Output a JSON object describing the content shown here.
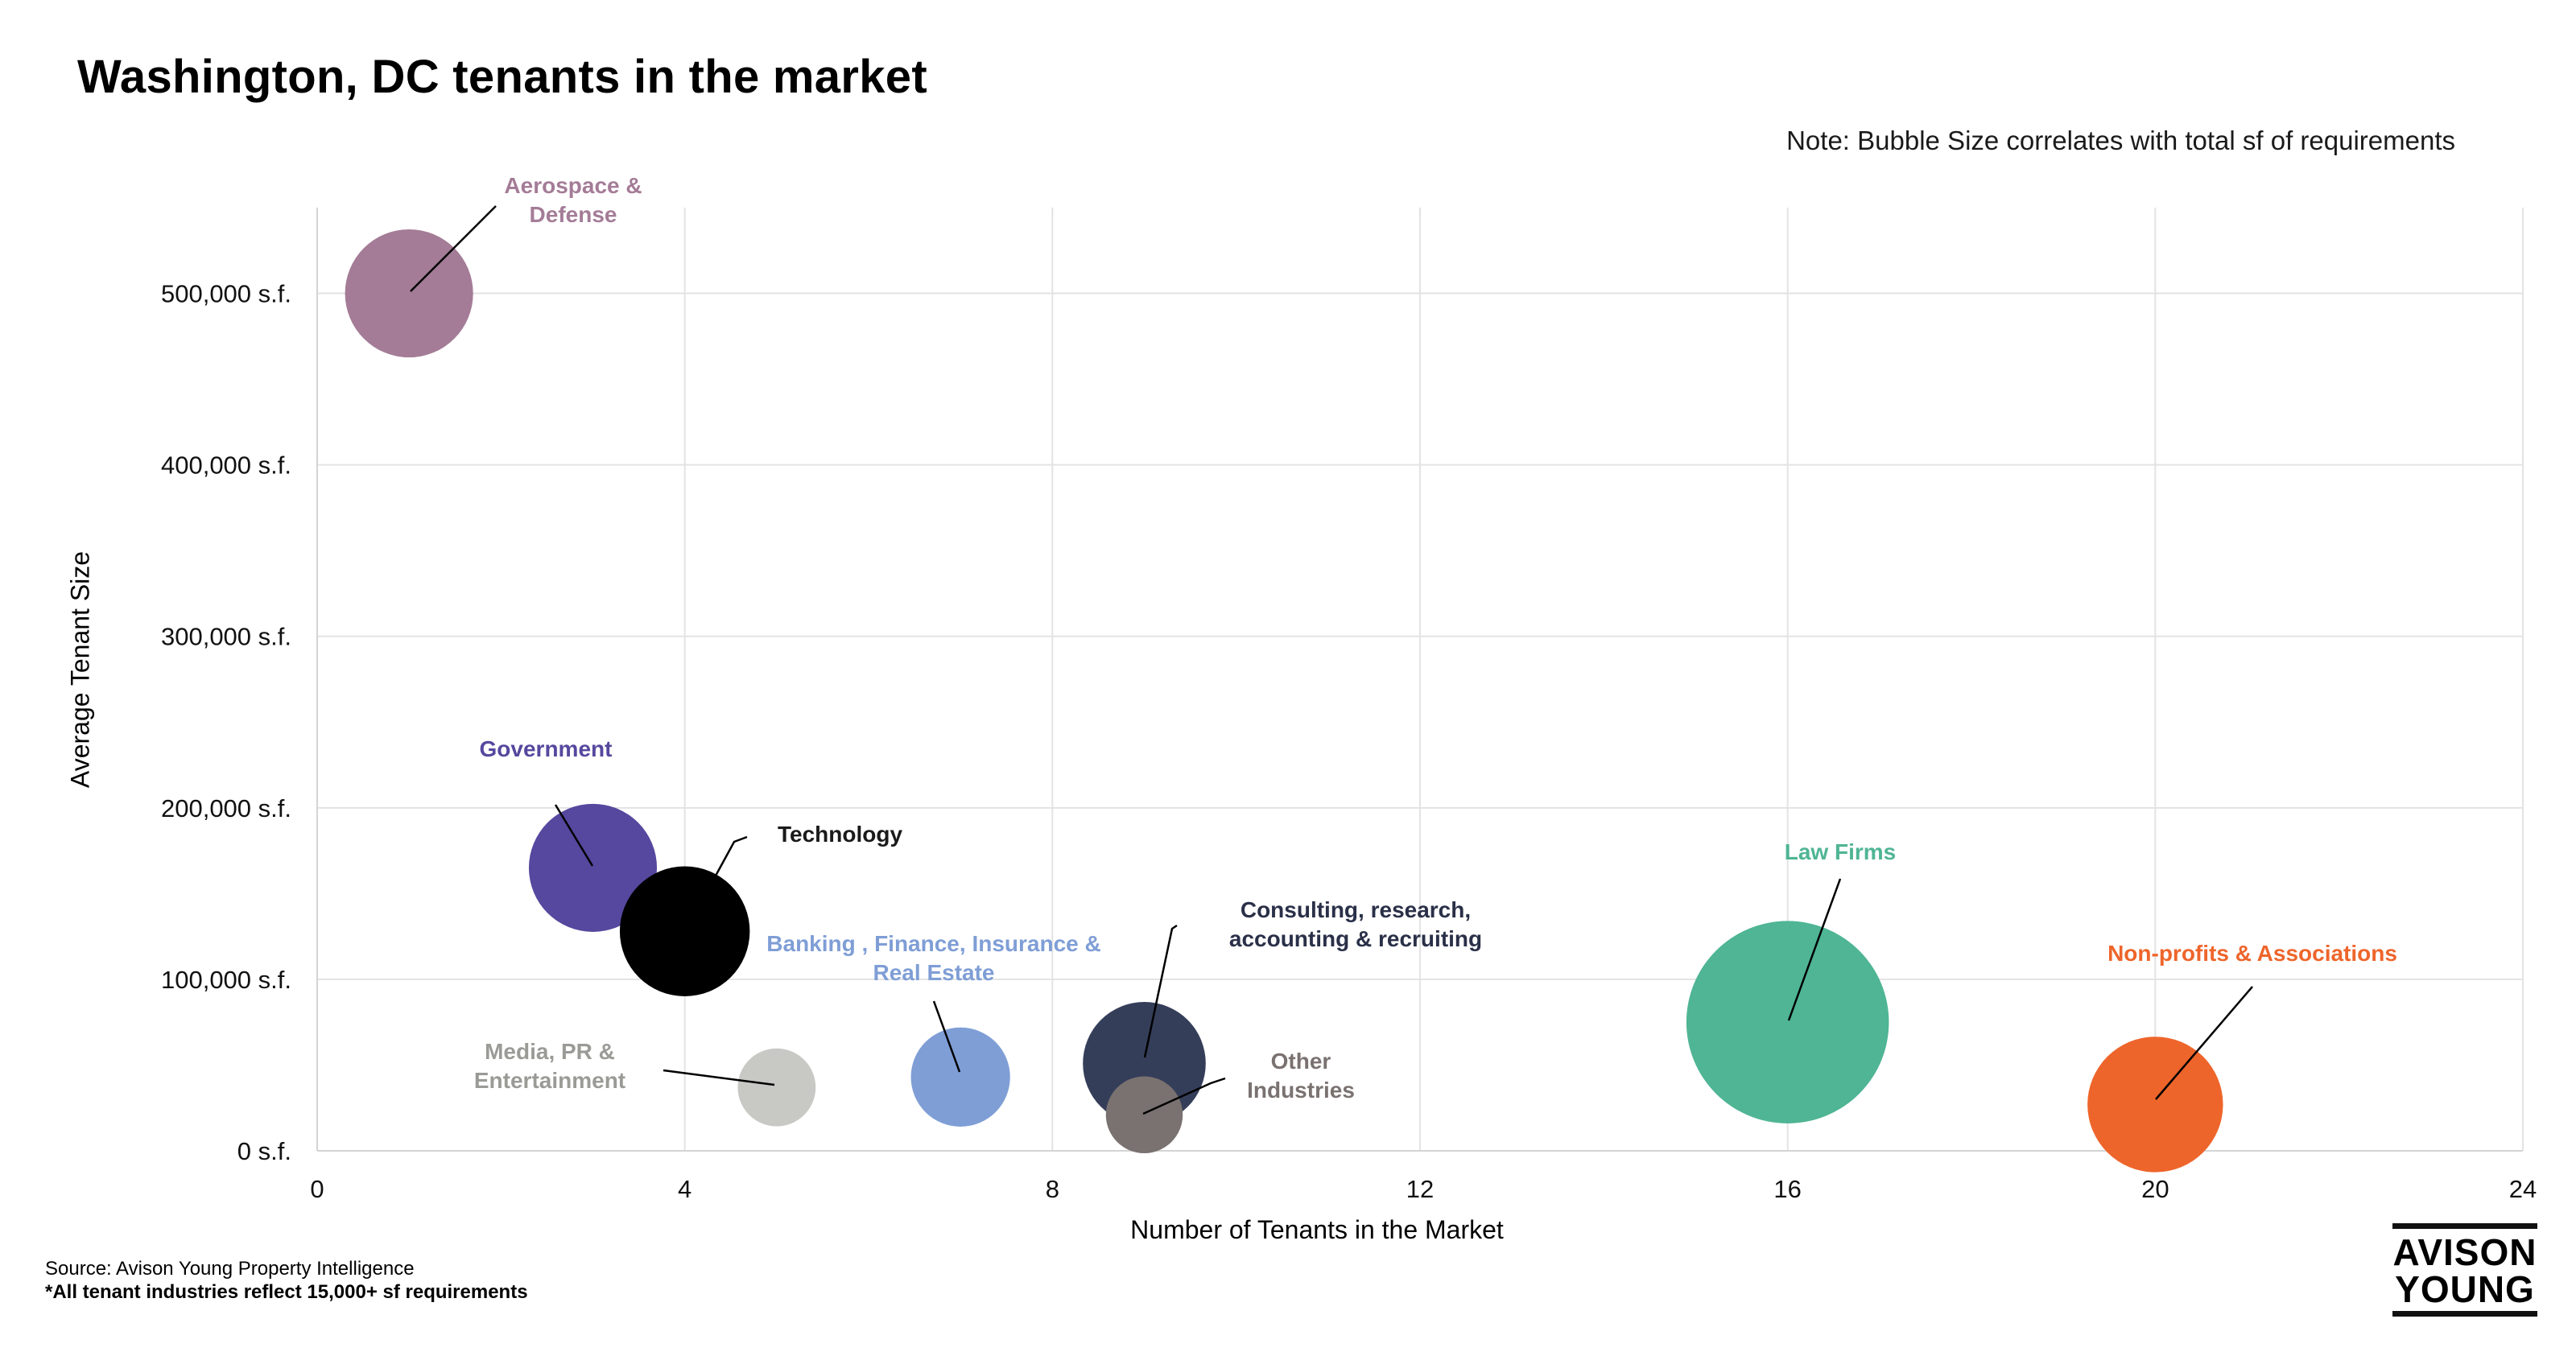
{
  "title": "Washington, DC tenants in the market",
  "note": "Note: Bubble Size correlates with total sf of requirements",
  "source_line": "Source: Avison Young Property Intelligence",
  "footnote": "*All tenant industries reflect 15,000+ sf requirements",
  "logo": {
    "line1": "AVISON",
    "line2": "YOUNG"
  },
  "chart_data": {
    "type": "bubble",
    "title": "Washington, DC tenants in the market",
    "xlabel": "Number of Tenants in the Market",
    "ylabel": "Average Tenant Size",
    "xlim": [
      0,
      24
    ],
    "ylim": [
      0,
      550000
    ],
    "x_ticks": [
      0,
      4,
      8,
      12,
      16,
      20,
      24
    ],
    "y_ticks": [
      0,
      100000,
      200000,
      300000,
      400000,
      500000
    ],
    "y_tick_labels": [
      "0 s.f.",
      "100,000 s.f.",
      "200,000 s.f.",
      "300,000 s.f.",
      "400,000 s.f.",
      "500,000 s.f."
    ],
    "grid": true,
    "series": [
      {
        "name": "Aerospace & Defense",
        "label_lines": [
          "Aerospace &",
          "Defense"
        ],
        "x": 1,
        "y": 500000,
        "size": 500000,
        "color": "#a47c97",
        "label_color": "#a47c97"
      },
      {
        "name": "Government",
        "label_lines": [
          "Government"
        ],
        "x": 3,
        "y": 165000,
        "size": 500000,
        "color": "#56489e",
        "label_color": "#56489e"
      },
      {
        "name": "Technology",
        "label_lines": [
          "Technology"
        ],
        "x": 4,
        "y": 128000,
        "size": 515000,
        "color": "#000000",
        "label_color": "#1a1a1a"
      },
      {
        "name": "Media, PR & Entertainment",
        "label_lines": [
          "Media, PR &",
          "Entertainment"
        ],
        "x": 5,
        "y": 37000,
        "size": 185000,
        "color": "#c8c8c4",
        "label_color": "#9a9a96"
      },
      {
        "name": "Banking , Finance, Insurance & Real Estate",
        "label_lines": [
          "Banking , Finance, Insurance &",
          "Real Estate"
        ],
        "x": 7,
        "y": 43000,
        "size": 300000,
        "color": "#7f9ed6",
        "label_color": "#7f9ed6"
      },
      {
        "name": "Consulting, research, accounting & recruiting",
        "label_lines": [
          "Consulting, research,",
          "accounting & recruiting"
        ],
        "x": 9,
        "y": 51000,
        "size": 460000,
        "color": "#353e59",
        "label_color": "#2a3048"
      },
      {
        "name": "Other Industries",
        "label_lines": [
          "Other",
          "Industries"
        ],
        "x": 9,
        "y": 21000,
        "size": 180000,
        "color": "#7a7270",
        "label_color": "#7a7270"
      },
      {
        "name": "Law Firms",
        "label_lines": [
          "Law Firms"
        ],
        "x": 16,
        "y": 75000,
        "size": 1250000,
        "color": "#4fb594",
        "label_color": "#4fb594"
      },
      {
        "name": "Non-profits & Associations",
        "label_lines": [
          "Non-profits & Associations"
        ],
        "x": 20,
        "y": 27000,
        "size": 560000,
        "color": "#ee652b",
        "label_color": "#ee652b"
      }
    ]
  }
}
